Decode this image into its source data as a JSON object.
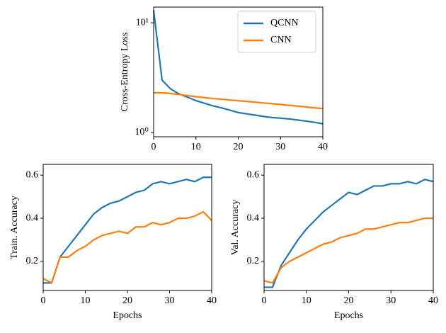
{
  "chart_data": [
    {
      "type": "line",
      "ylabel": "Cross-Entropy Loss",
      "log_scale": true,
      "legend": "upper right",
      "x": [
        0,
        2,
        4,
        6,
        8,
        10,
        12,
        14,
        16,
        18,
        20,
        22,
        24,
        26,
        28,
        30,
        32,
        34,
        36,
        38,
        40
      ],
      "series": [
        {
          "name": "QCNN",
          "color": "#1f77b4",
          "values": [
            13,
            3.0,
            2.5,
            2.25,
            2.1,
            1.95,
            1.85,
            1.75,
            1.68,
            1.6,
            1.52,
            1.48,
            1.44,
            1.4,
            1.37,
            1.35,
            1.33,
            1.3,
            1.27,
            1.24,
            1.2
          ]
        },
        {
          "name": "CNN",
          "color": "#ff7f0e",
          "values": [
            2.3,
            2.3,
            2.27,
            2.22,
            2.17,
            2.12,
            2.08,
            2.04,
            2.01,
            1.98,
            1.95,
            1.92,
            1.89,
            1.86,
            1.83,
            1.8,
            1.77,
            1.74,
            1.71,
            1.68,
            1.65
          ]
        }
      ],
      "xlim": [
        0,
        40
      ],
      "xticks": [
        0,
        10,
        20,
        30,
        40
      ],
      "ylim": [
        0.915,
        13.9
      ],
      "yticks": [
        {
          "value": 1,
          "label": "10⁰"
        },
        {
          "value": 10,
          "label": "10¹"
        }
      ]
    },
    {
      "type": "line",
      "xlabel": "Epochs",
      "ylabel": "Train. Accuracy",
      "x": [
        0,
        2,
        4,
        6,
        8,
        10,
        12,
        14,
        16,
        18,
        20,
        22,
        24,
        26,
        28,
        30,
        32,
        34,
        36,
        38,
        40
      ],
      "series": [
        {
          "name": "QCNN",
          "color": "#1f77b4",
          "values": [
            0.1,
            0.1,
            0.22,
            0.27,
            0.32,
            0.37,
            0.42,
            0.45,
            0.47,
            0.48,
            0.5,
            0.52,
            0.53,
            0.56,
            0.57,
            0.56,
            0.57,
            0.58,
            0.57,
            0.59,
            0.59
          ]
        },
        {
          "name": "CNN",
          "color": "#ff7f0e",
          "values": [
            0.12,
            0.1,
            0.22,
            0.22,
            0.25,
            0.27,
            0.3,
            0.32,
            0.33,
            0.34,
            0.33,
            0.36,
            0.36,
            0.38,
            0.37,
            0.38,
            0.4,
            0.4,
            0.41,
            0.43,
            0.39
          ]
        }
      ],
      "xlim": [
        0,
        40
      ],
      "xticks": [
        0,
        10,
        20,
        30,
        40
      ],
      "ylim": [
        0.065,
        0.65
      ],
      "yticks": [
        0.2,
        0.4,
        0.6
      ]
    },
    {
      "type": "line",
      "xlabel": "Epochs",
      "ylabel": "Val. Accuracy",
      "x": [
        0,
        2,
        4,
        6,
        8,
        10,
        12,
        14,
        16,
        18,
        20,
        22,
        24,
        26,
        28,
        30,
        32,
        34,
        36,
        38,
        40
      ],
      "series": [
        {
          "name": "QCNN",
          "color": "#1f77b4",
          "values": [
            0.08,
            0.08,
            0.18,
            0.24,
            0.3,
            0.35,
            0.39,
            0.43,
            0.46,
            0.49,
            0.52,
            0.51,
            0.53,
            0.55,
            0.55,
            0.56,
            0.56,
            0.57,
            0.56,
            0.58,
            0.57
          ]
        },
        {
          "name": "CNN",
          "color": "#ff7f0e",
          "values": [
            0.11,
            0.1,
            0.17,
            0.2,
            0.22,
            0.24,
            0.26,
            0.28,
            0.29,
            0.31,
            0.32,
            0.33,
            0.35,
            0.35,
            0.36,
            0.37,
            0.38,
            0.38,
            0.39,
            0.4,
            0.4
          ]
        }
      ],
      "xlim": [
        0,
        40
      ],
      "xticks": [
        0,
        10,
        20,
        30,
        40
      ],
      "ylim": [
        0.065,
        0.65
      ],
      "yticks": [
        0.2,
        0.4,
        0.6
      ]
    }
  ]
}
